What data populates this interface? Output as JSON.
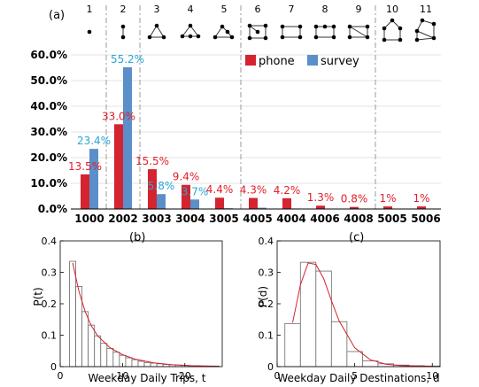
{
  "colors": {
    "phone": "#d42430",
    "survey": "#5b8fc9",
    "phone_label": "#e0202c",
    "survey_label": "#2aa6d6",
    "fit": "#d6202a",
    "bar_outline": "#6a6a6a"
  },
  "chart_data": [
    {
      "panel": "(a)",
      "type": "bar",
      "motif_numbers": [
        "1",
        "2",
        "3",
        "4",
        "5",
        "6",
        "7",
        "8",
        "9",
        "10",
        "11"
      ],
      "categories": [
        "1000",
        "2002",
        "3003",
        "3004",
        "3005",
        "4005",
        "4004",
        "4006",
        "4008",
        "5005",
        "5006"
      ],
      "series": [
        {
          "name": "phone",
          "values": [
            13.5,
            33.0,
            15.5,
            9.4,
            4.4,
            4.3,
            4.2,
            1.3,
            0.8,
            1.0,
            1.0
          ]
        },
        {
          "name": "survey",
          "values": [
            23.4,
            55.2,
            5.8,
            3.7,
            0.3,
            0.5,
            0.2,
            0.0,
            0.0,
            0.0,
            0.0
          ]
        }
      ],
      "value_labels": {
        "phone": [
          "13.5%",
          "33.0%",
          "15.5%",
          "9.4%",
          "4.4%",
          "4.3%",
          "4.2%",
          "1.3%",
          "0.8%",
          "1%",
          "1%"
        ],
        "survey": [
          "23.4%",
          "55.2%",
          "5.8%",
          "3.7%",
          "",
          "",
          "",
          "",
          "",
          "",
          ""
        ]
      },
      "ylim": [
        0,
        60
      ],
      "yticks": [
        "0.0%",
        "10.0%",
        "20.0%",
        "30.0%",
        "40.0%",
        "50.0%",
        "60.0%"
      ],
      "ylabel": "",
      "xlabel": "",
      "legend_position": "top-right",
      "group_dividers": "dashed vertical lines after 1000, 2002, 3005 and 4008"
    },
    {
      "panel": "(b)",
      "type": "bar",
      "bins": [
        1,
        2,
        3,
        4,
        5,
        6,
        7,
        8,
        9,
        10,
        11,
        12,
        13,
        14,
        15,
        16,
        17,
        18,
        19,
        20,
        21,
        22,
        23,
        24,
        25
      ],
      "values": [
        0.0,
        0.335,
        0.255,
        0.175,
        0.132,
        0.098,
        0.074,
        0.058,
        0.046,
        0.036,
        0.028,
        0.022,
        0.017,
        0.013,
        0.011,
        0.009,
        0.007,
        0.006,
        0.005,
        0.004,
        0.003,
        0.003,
        0.002,
        0.002,
        0.002
      ],
      "fit_curve": [
        [
          2,
          0.33
        ],
        [
          3,
          0.24
        ],
        [
          4,
          0.175
        ],
        [
          5,
          0.13
        ],
        [
          6,
          0.098
        ],
        [
          8,
          0.06
        ],
        [
          10,
          0.038
        ],
        [
          12,
          0.024
        ],
        [
          15,
          0.012
        ],
        [
          18,
          0.006
        ],
        [
          21,
          0.003
        ],
        [
          25,
          0.001
        ]
      ],
      "xlabel": "Weekday Daily Trips, t",
      "ylabel": "P(t)",
      "xlim": [
        0,
        26
      ],
      "ylim": [
        0,
        0.4
      ],
      "xticks": [
        "0",
        "10",
        "20"
      ],
      "yticks": [
        "0",
        "0.1",
        "0.2",
        "0.3",
        "0.4"
      ]
    },
    {
      "panel": "(c)",
      "type": "bar",
      "bins": [
        1,
        2,
        3,
        4,
        5,
        6,
        7,
        8,
        9,
        10
      ],
      "values": [
        0.137,
        0.332,
        0.304,
        0.143,
        0.048,
        0.018,
        0.009,
        0.005,
        0.003,
        0.002
      ],
      "fit_curve": [
        [
          1,
          0.14
        ],
        [
          1.5,
          0.26
        ],
        [
          2,
          0.33
        ],
        [
          2.5,
          0.325
        ],
        [
          3,
          0.28
        ],
        [
          3.5,
          0.21
        ],
        [
          4,
          0.145
        ],
        [
          5,
          0.06
        ],
        [
          6,
          0.022
        ],
        [
          7,
          0.008
        ],
        [
          8,
          0.003
        ],
        [
          10,
          0.001
        ]
      ],
      "xlabel": "Weekday Daily Destinations, d",
      "ylabel": "P(d)",
      "xlim": [
        0,
        10.5
      ],
      "ylim": [
        0,
        0.4
      ],
      "xticks": [
        "0",
        "5",
        "10"
      ],
      "yticks": [
        "0",
        "0.1",
        "0.2",
        "0.3",
        "0.4"
      ]
    }
  ]
}
